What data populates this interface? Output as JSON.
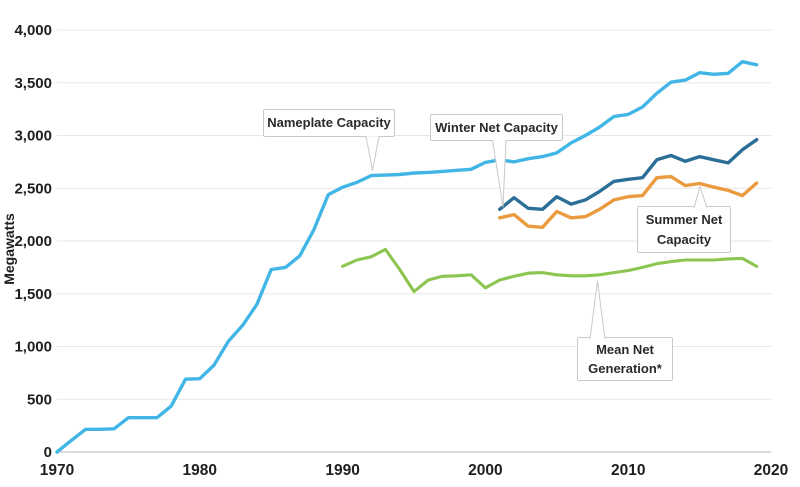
{
  "chart_data": {
    "type": "line",
    "title": "",
    "xlabel": "",
    "ylabel": "Megawatts",
    "xlim": [
      1970,
      2020
    ],
    "ylim": [
      0,
      4000
    ],
    "grid": "horizontal",
    "legend": "inline-callout-labels",
    "x_ticks": [
      1970,
      1980,
      1990,
      2000,
      2010,
      2020
    ],
    "y_ticks": [
      0,
      500,
      1000,
      1500,
      2000,
      2500,
      3000,
      3500,
      4000
    ],
    "y_tick_labels": [
      "0",
      "500",
      "1,000",
      "1,500",
      "2,000",
      "2,500",
      "3,000",
      "3,500",
      "4,000"
    ],
    "units": "Megawatts",
    "series": [
      {
        "id": "nameplate-capacity",
        "name": "Nameplate Capacity",
        "color": "#41b6e6",
        "stroke_width": 3.4,
        "start_year": 1970,
        "values": [
          0,
          110,
          215,
          215,
          220,
          325,
          325,
          325,
          435,
          690,
          695,
          825,
          1050,
          1200,
          1400,
          1730,
          1750,
          1860,
          2110,
          2440,
          2510,
          2555,
          2620,
          2625,
          2630,
          2645,
          2650,
          2660,
          2670,
          2680,
          2745,
          2770,
          2750,
          2780,
          2800,
          2835,
          2930,
          3000,
          3080,
          3180,
          3200,
          3270,
          3400,
          3505,
          3525,
          3595,
          3580,
          3590,
          3700,
          3670
        ]
      },
      {
        "id": "winter-net-capacity",
        "name": "Winter Net Capacity",
        "color": "#2b6e98",
        "stroke_width": 3.4,
        "start_year": 2001,
        "values": [
          2300,
          2410,
          2310,
          2300,
          2420,
          2350,
          2390,
          2470,
          2565,
          2585,
          2600,
          2770,
          2810,
          2755,
          2800,
          2770,
          2740,
          2865,
          2960
        ]
      },
      {
        "id": "summer-net-capacity",
        "name": "Summer Net Capacity",
        "color": "#eb9b3f",
        "stroke_width": 3.4,
        "start_year": 2001,
        "values": [
          2220,
          2250,
          2140,
          2130,
          2280,
          2220,
          2230,
          2300,
          2390,
          2420,
          2430,
          2600,
          2610,
          2525,
          2545,
          2510,
          2480,
          2430,
          2550
        ]
      },
      {
        "id": "mean-net-generation",
        "name": "Mean Net Generation*",
        "color": "#8cc550",
        "stroke_width": 3.1,
        "start_year": 1990,
        "values": [
          1760,
          1820,
          1850,
          1920,
          1730,
          1520,
          1630,
          1665,
          1670,
          1680,
          1555,
          1630,
          1665,
          1695,
          1700,
          1680,
          1670,
          1670,
          1680,
          1700,
          1720,
          1750,
          1785,
          1805,
          1820,
          1820,
          1820,
          1830,
          1835,
          1760
        ]
      }
    ],
    "annotations": [
      {
        "id": "nameplate",
        "text": "Nameplate Capacity"
      },
      {
        "id": "winter",
        "text": "Winter Net Capacity"
      },
      {
        "id": "summer",
        "text": "Summer Net Capacity"
      },
      {
        "id": "mean",
        "text": "Mean Net Generation*"
      }
    ]
  }
}
